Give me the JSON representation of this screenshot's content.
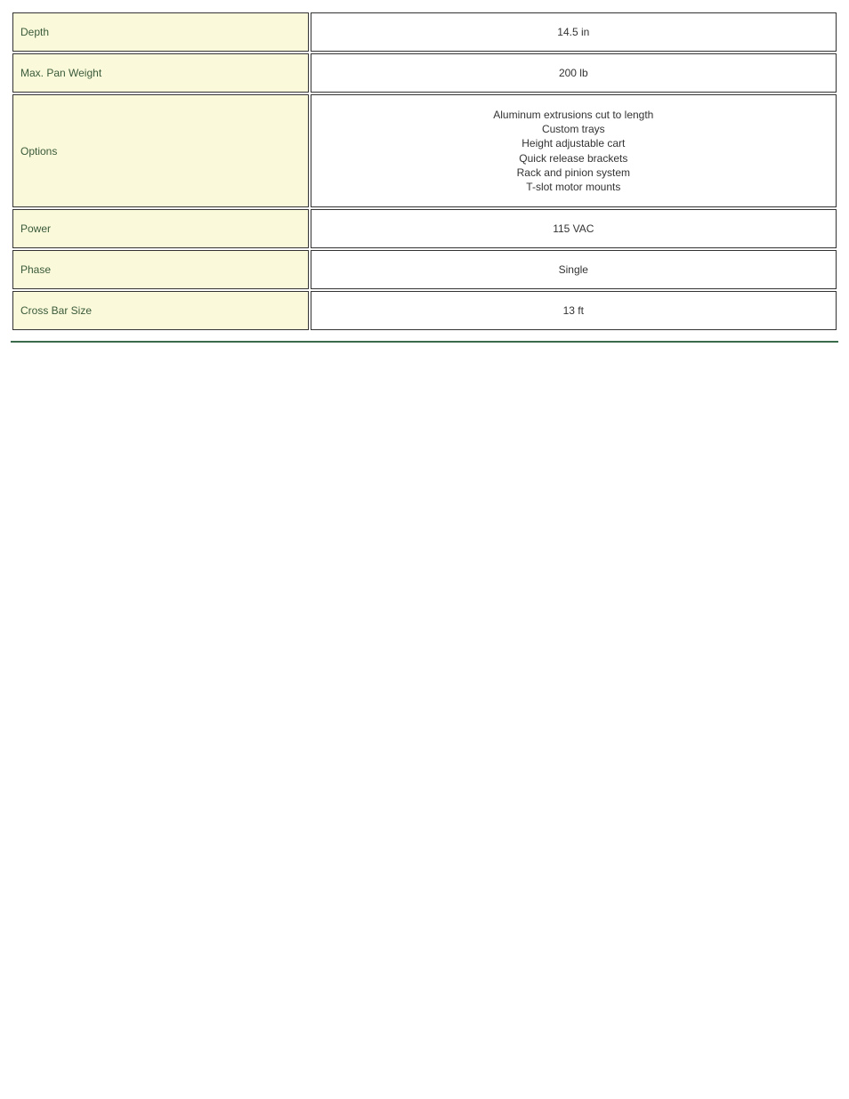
{
  "table": {
    "label_bg": "#fafadb",
    "label_color": "#3a5a3a",
    "value_bg": "#ffffff",
    "value_color": "#333333",
    "border_color": "#333333",
    "divider_color": "#3a6b4a",
    "rows": [
      {
        "label": "Depth",
        "value": "14.5 in",
        "multiline": false
      },
      {
        "label": "Max. Pan Weight",
        "value": "200 lb",
        "multiline": false
      },
      {
        "label": "Options",
        "value": "Aluminum extrusions cut to length\nCustom trays\nHeight adjustable cart\nQuick release brackets\nRack and pinion system\nT-slot motor mounts",
        "multiline": true
      },
      {
        "label": "Power",
        "value": "115 VAC",
        "multiline": false
      },
      {
        "label": "Phase",
        "value": "Single",
        "multiline": false
      },
      {
        "label": "Cross Bar Size",
        "value": "13 ft",
        "multiline": false
      }
    ]
  }
}
